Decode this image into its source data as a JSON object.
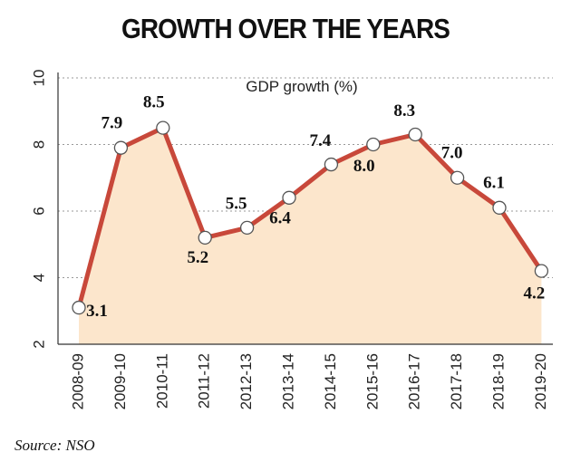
{
  "title": "GROWTH OVER THE YEARS",
  "source": "Source: NSO",
  "colors": {
    "line": "#c8483a",
    "area": "#fce6cc",
    "marker_fill": "#ffffff",
    "grid": "#999999"
  },
  "chart_data": {
    "type": "area",
    "title": "GROWTH OVER THE YEARS",
    "ylabel": "GDP growth (%)",
    "xlabel": "",
    "categories": [
      "2008-09",
      "2009-10",
      "2010-11",
      "2011-12",
      "2012-13",
      "2013-14",
      "2014-15",
      "2015-16",
      "2016-17",
      "2017-18",
      "2018-19",
      "2019-20"
    ],
    "values": [
      3.1,
      7.9,
      8.5,
      5.2,
      5.5,
      6.4,
      7.4,
      8.0,
      8.3,
      7.0,
      6.1,
      4.2
    ],
    "data_labels": [
      "3.1",
      "7.9",
      "8.5",
      "5.2",
      "5.5",
      "6.4",
      "7.4",
      "8.0",
      "8.3",
      "7.0",
      "6.1",
      "4.2"
    ],
    "ylim": [
      2,
      10
    ],
    "yticks": [
      "2",
      "4",
      "6",
      "8",
      "10"
    ],
    "grid": "horizontal dotted",
    "legend": "none"
  }
}
